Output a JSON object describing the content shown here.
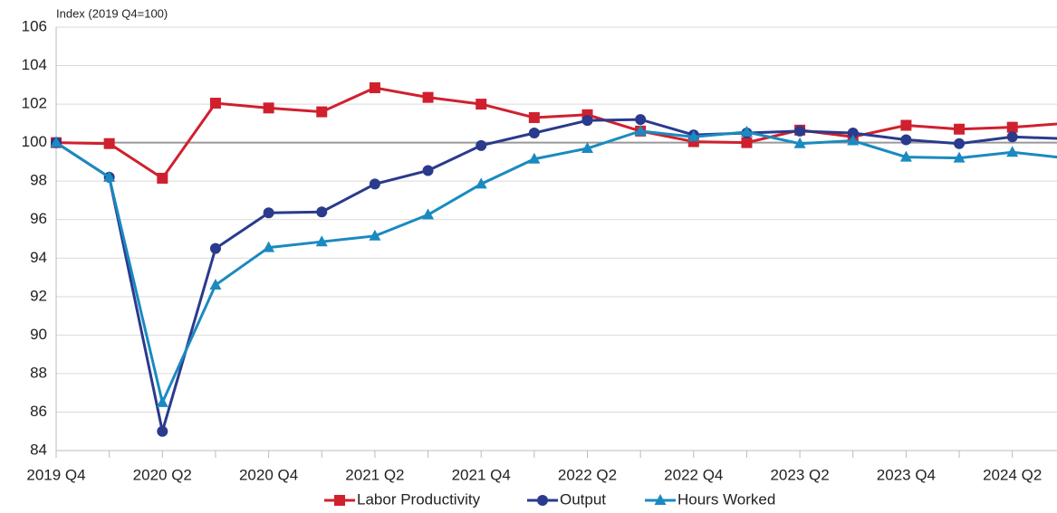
{
  "chart_data": {
    "type": "line",
    "y_label": "Index (2019 Q4=100)",
    "categories": [
      "2019 Q4",
      null,
      "2020 Q2",
      null,
      "2020 Q4",
      null,
      "2021 Q2",
      null,
      "2021 Q4",
      null,
      "2022 Q2",
      null,
      "2022 Q4",
      null,
      "2023 Q2",
      null,
      "2023 Q4",
      null,
      "2024 Q2",
      null
    ],
    "series": [
      {
        "name": "Labor Productivity",
        "color": "#d0202e",
        "marker": "square",
        "values": [
          100,
          99.95,
          98.15,
          102.05,
          101.8,
          101.6,
          102.85,
          102.35,
          102.0,
          101.3,
          101.45,
          100.6,
          100.05,
          100.0,
          100.65,
          100.3,
          100.9,
          100.7,
          100.8,
          101.0
        ]
      },
      {
        "name": "Output",
        "color": "#2a3a8c",
        "marker": "circle",
        "values": [
          100,
          98.2,
          85.0,
          94.5,
          96.35,
          96.4,
          97.85,
          98.55,
          99.85,
          100.5,
          101.15,
          101.2,
          100.4,
          100.5,
          100.6,
          100.5,
          100.15,
          99.95,
          100.3,
          100.2
        ]
      },
      {
        "name": "Hours Worked",
        "color": "#1a8ac0",
        "marker": "triangle",
        "values": [
          100,
          98.2,
          86.5,
          92.6,
          94.55,
          94.85,
          95.15,
          96.25,
          97.85,
          99.15,
          99.7,
          100.6,
          100.3,
          100.55,
          99.95,
          100.1,
          99.25,
          99.2,
          99.5,
          99.2
        ]
      }
    ],
    "ylim": [
      84,
      106
    ],
    "yticks": [
      84,
      86,
      88,
      90,
      92,
      94,
      96,
      98,
      100,
      102,
      104,
      106
    ],
    "grid": true,
    "reference_line": 100,
    "legend": "bottom"
  }
}
